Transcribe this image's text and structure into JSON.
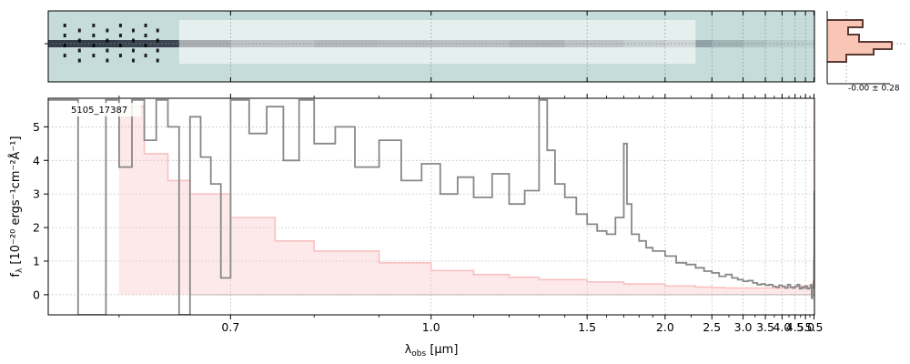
{
  "chart_data": [
    {
      "type": "heatmap",
      "panel": "2d-spectrum",
      "background_color": "#c5dcda",
      "trace_color": "#1a2230",
      "x_range": [
        0.55,
        5.53
      ],
      "profile_panel": {
        "annotation": "-0.00 ± 0.28",
        "profile_color": "#5a3a32",
        "fill_color": "#f9c5b5"
      }
    },
    {
      "type": "line",
      "panel": "1d-spectrum",
      "annotation": "5105_17387",
      "xlabel_main": "λ",
      "xlabel_sub": "obs",
      "xlabel_unit": " [μm]",
      "ylabel": "f",
      "ylabel_sub": "λ",
      "ylabel_unit": " [10⁻²⁰ ergs⁻¹cm⁻²Å⁻¹]",
      "xlim": [
        0.55,
        5.53
      ],
      "ylim": [
        -0.6,
        5.85
      ],
      "x_scale": "reciprocal",
      "grid": true,
      "x_ticks": [
        {
          "value": 0.7,
          "label": "0.7"
        },
        {
          "value": 1.0,
          "label": "1.0"
        },
        {
          "value": 1.5,
          "label": "1.5"
        },
        {
          "value": 2.0,
          "label": "2.0"
        },
        {
          "value": 2.5,
          "label": "2.5"
        },
        {
          "value": 3.0,
          "label": "3.0"
        },
        {
          "value": 3.5,
          "label": "3.5"
        },
        {
          "value": 4.0,
          "label": "4.0"
        },
        {
          "value": 4.5,
          "label": "4.5"
        },
        {
          "value": 5.0,
          "label": "5.0"
        },
        {
          "value": 5.5,
          "label": "5.5"
        }
      ],
      "y_ticks": [
        {
          "value": 0,
          "label": "0"
        },
        {
          "value": 1,
          "label": "1"
        },
        {
          "value": 2,
          "label": "2"
        },
        {
          "value": 3,
          "label": "3"
        },
        {
          "value": 4,
          "label": "4"
        },
        {
          "value": 5,
          "label": "5"
        }
      ],
      "series": [
        {
          "color": "#f9c0c0",
          "style": "fill-step",
          "x": [
            0.6,
            0.62,
            0.64,
            0.66,
            0.7,
            0.75,
            0.8,
            0.9,
            1.0,
            1.1,
            1.2,
            1.3,
            1.5,
            1.7,
            2.0,
            2.3,
            2.5,
            2.7,
            3.0,
            3.3,
            3.6,
            4.0,
            4.3,
            4.6,
            5.0,
            5.2,
            5.35,
            5.45,
            5.5,
            5.52
          ],
          "values": [
            5.6,
            4.2,
            3.4,
            3.0,
            2.3,
            1.6,
            1.3,
            0.95,
            0.72,
            0.6,
            0.52,
            0.45,
            0.38,
            0.32,
            0.26,
            0.23,
            0.21,
            0.2,
            0.2,
            0.2,
            0.2,
            0.22,
            0.24,
            0.26,
            0.27,
            0.28,
            0.3,
            0.4,
            1.2,
            5.8
          ]
        },
        {
          "color": "#888888",
          "style": "step",
          "x": [
            0.55,
            0.57,
            0.59,
            0.6,
            0.61,
            0.62,
            0.63,
            0.64,
            0.65,
            0.66,
            0.67,
            0.68,
            0.69,
            0.7,
            0.72,
            0.74,
            0.76,
            0.78,
            0.8,
            0.83,
            0.86,
            0.9,
            0.94,
            0.98,
            1.02,
            1.06,
            1.1,
            1.15,
            1.2,
            1.25,
            1.3,
            1.33,
            1.36,
            1.4,
            1.45,
            1.5,
            1.55,
            1.6,
            1.65,
            1.7,
            1.72,
            1.75,
            1.8,
            1.85,
            1.9,
            2.0,
            2.1,
            2.2,
            2.3,
            2.4,
            2.5,
            2.6,
            2.7,
            2.8,
            2.9,
            3.0,
            3.1,
            3.2,
            3.3,
            3.4,
            3.5,
            3.6,
            3.7,
            3.8,
            3.9,
            4.0,
            4.1,
            4.2,
            4.3,
            4.4,
            4.5,
            4.6,
            4.7,
            4.8,
            4.9,
            5.0,
            5.1,
            5.2,
            5.3,
            5.35,
            5.4,
            5.45,
            5.48,
            5.5,
            5.52
          ],
          "values": [
            5.8,
            -0.6,
            5.8,
            3.8,
            5.8,
            4.6,
            5.8,
            5.0,
            -0.6,
            5.3,
            4.1,
            3.3,
            0.5,
            5.8,
            4.8,
            5.6,
            4.0,
            5.8,
            4.5,
            5.0,
            3.8,
            4.6,
            3.4,
            3.9,
            3.0,
            3.5,
            2.9,
            3.6,
            2.7,
            3.1,
            5.8,
            4.3,
            3.3,
            2.9,
            2.4,
            2.1,
            1.9,
            1.8,
            2.3,
            4.5,
            2.7,
            1.8,
            1.6,
            1.4,
            1.3,
            1.15,
            0.95,
            0.9,
            0.8,
            0.7,
            0.65,
            0.55,
            0.6,
            0.5,
            0.45,
            0.4,
            0.42,
            0.35,
            0.3,
            0.32,
            0.28,
            0.3,
            0.25,
            0.22,
            0.28,
            0.25,
            0.2,
            0.3,
            0.22,
            0.2,
            0.25,
            0.3,
            0.18,
            0.22,
            0.2,
            0.25,
            0.18,
            0.2,
            0.3,
            -0.1,
            0.25,
            0.2,
            0.4,
            1.0,
            3.1
          ]
        }
      ]
    }
  ]
}
